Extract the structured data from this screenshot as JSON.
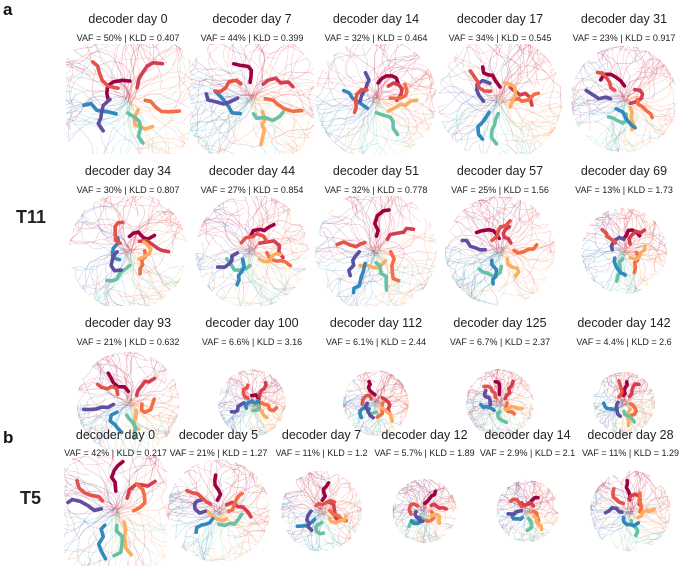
{
  "panels": [
    {
      "letter": "a",
      "subject": "T11",
      "rows": [
        [
          {
            "title": "decoder day 0",
            "stats": "VAF = 50% | KLD = 0.407",
            "vaf": 50
          },
          {
            "title": "decoder day 7",
            "stats": "VAF = 44% | KLD = 0.399",
            "vaf": 44
          },
          {
            "title": "decoder day 14",
            "stats": "VAF = 32% | KLD = 0.464",
            "vaf": 32
          },
          {
            "title": "decoder day 17",
            "stats": "VAF = 34% | KLD = 0.545",
            "vaf": 34
          },
          {
            "title": "decoder day 31",
            "stats": "VAF = 23% | KLD = 0.917",
            "vaf": 23
          }
        ],
        [
          {
            "title": "decoder day 34",
            "stats": "VAF = 30% | KLD = 0.807",
            "vaf": 30
          },
          {
            "title": "decoder day 44",
            "stats": "VAF = 27% | KLD = 0.854",
            "vaf": 27
          },
          {
            "title": "decoder day 51",
            "stats": "VAF = 32% | KLD = 0.778",
            "vaf": 32
          },
          {
            "title": "decoder day 57",
            "stats": "VAF = 25% | KLD = 1.56",
            "vaf": 25
          },
          {
            "title": "decoder day 69",
            "stats": "VAF = 13% | KLD = 1.73",
            "vaf": 13
          }
        ],
        [
          {
            "title": "decoder day 93",
            "stats": "VAF = 21% | KLD = 0.632",
            "vaf": 21
          },
          {
            "title": "decoder day 100",
            "stats": "VAF = 6.6% | KLD = 3.16",
            "vaf": 6.6
          },
          {
            "title": "decoder day 112",
            "stats": "VAF = 6.1% | KLD = 2.44",
            "vaf": 6.1
          },
          {
            "title": "decoder day 125",
            "stats": "VAF = 6.7% | KLD = 2.37",
            "vaf": 6.7
          },
          {
            "title": "decoder day 142",
            "stats": "VAF = 4.4% | KLD = 2.6",
            "vaf": 4.4
          }
        ]
      ]
    },
    {
      "letter": "b",
      "subject": "T5",
      "rows": [
        [
          {
            "title": "decoder day 0",
            "stats": "VAF = 42% | KLD = 0.217",
            "vaf": 42
          },
          {
            "title": "decoder day 5",
            "stats": "VAF = 21% | KLD = 1.27",
            "vaf": 21
          },
          {
            "title": "decoder day 7",
            "stats": "VAF = 11% | KLD = 1.2",
            "vaf": 11
          },
          {
            "title": "decoder day 12",
            "stats": "VAF = 5.7% | KLD = 1.89",
            "vaf": 5.7
          },
          {
            "title": "decoder day 14",
            "stats": "VAF = 2.9% | KLD = 2.1",
            "vaf": 2.9
          },
          {
            "title": "decoder day 28",
            "stats": "VAF = 11% | KLD = 1.29",
            "vaf": 11
          }
        ]
      ]
    }
  ],
  "colors": {
    "condition_palette": [
      "#9e0142",
      "#d53e4f",
      "#f46d43",
      "#fdae61",
      "#66c2a5",
      "#3288bd",
      "#5e4fa2",
      "#e6514a"
    ]
  }
}
